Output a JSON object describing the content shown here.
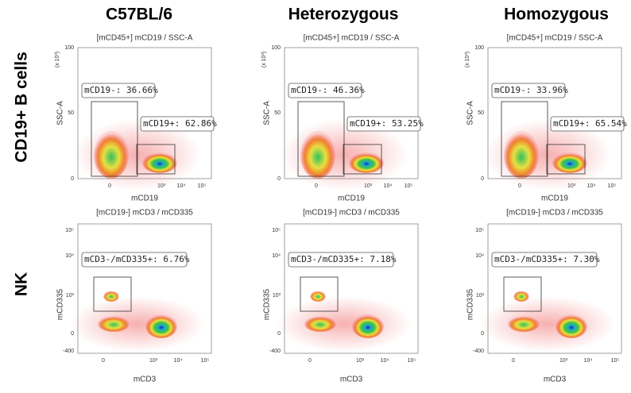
{
  "column_titles": [
    "C57BL/6",
    "Heterozygous",
    "Homozygous"
  ],
  "row_titles": [
    "CD19+ B cells",
    "NK"
  ],
  "rows": [
    {
      "axis_unit": "(x 10³)",
      "x_label": "mCD19",
      "y_label": "SSC-A",
      "x_ticks": [
        "0",
        "10³",
        "10⁴",
        "10⁵"
      ],
      "y_ticks": [
        "100",
        "50",
        "0"
      ],
      "panels": [
        {
          "title": "[mCD45+] mCD19 / SSC-A",
          "gates": [
            "mCD19-: 36.66%",
            "mCD19+: 62.86%"
          ]
        },
        {
          "title": "[mCD45+] mCD19 / SSC-A",
          "gates": [
            "mCD19-: 46.36%",
            "mCD19+: 53.25%"
          ]
        },
        {
          "title": "[mCD45+] mCD19 / SSC-A",
          "gates": [
            "mCD19-: 33.96%",
            "mCD19+: 65.54%"
          ]
        }
      ]
    },
    {
      "x_label": "mCD3",
      "y_label": "mCD335",
      "x_ticks": [
        "0",
        "10³",
        "10⁴",
        "10⁵"
      ],
      "y_ticks": [
        "10⁵",
        "10⁴",
        "10³",
        "0",
        "-400"
      ],
      "panels": [
        {
          "title": "[mCD19-] mCD3 / mCD335",
          "gates": [
            "mCD3-/mCD335+: 6.76%"
          ]
        },
        {
          "title": "[mCD19-] mCD3 / mCD335",
          "gates": [
            "mCD3-/mCD335+: 7.18%"
          ]
        },
        {
          "title": "[mCD19-] mCD3 / mCD335",
          "gates": [
            "mCD3-/mCD335+: 7.30%"
          ]
        }
      ]
    }
  ]
}
